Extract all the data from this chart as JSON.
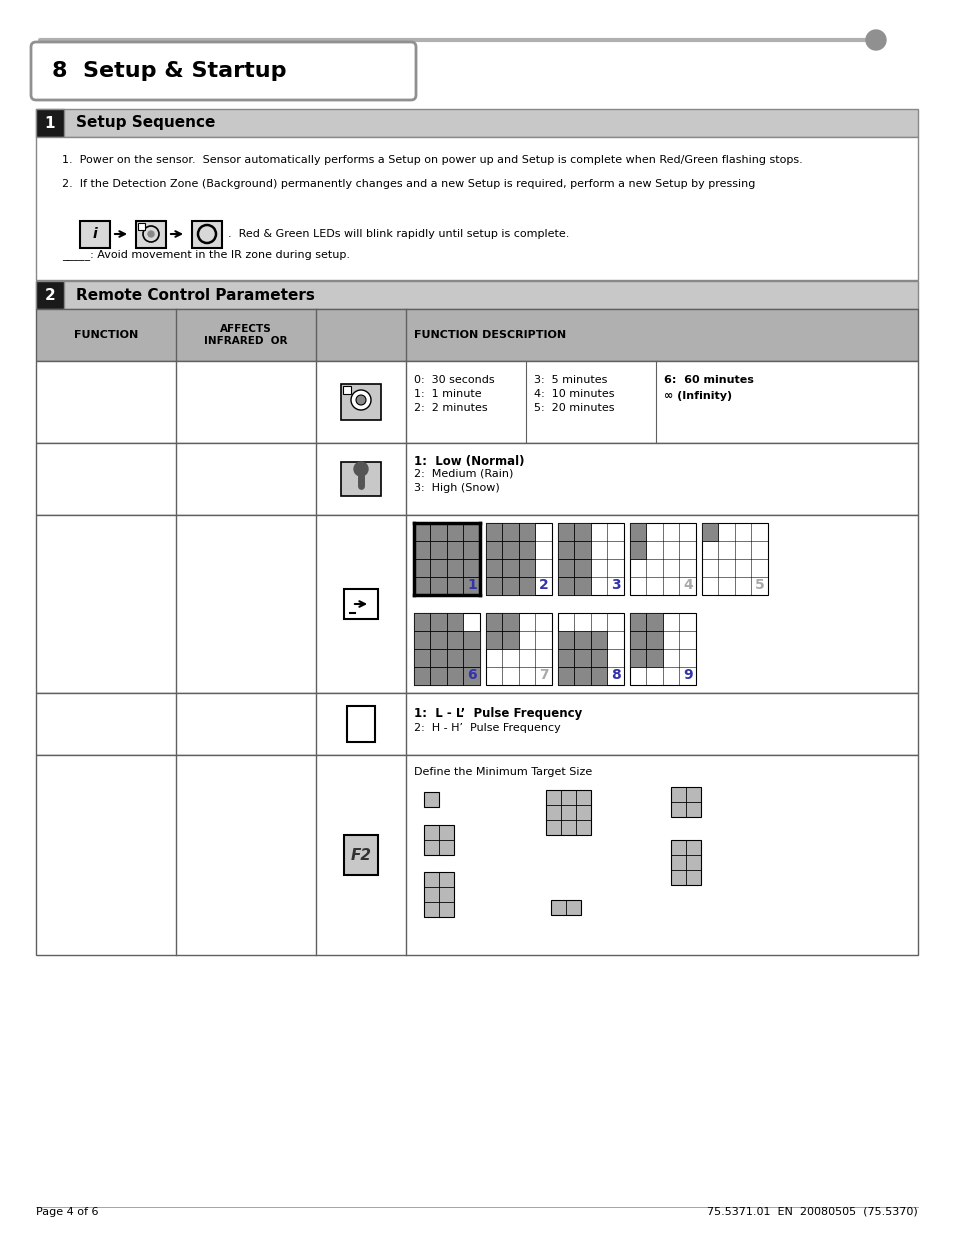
{
  "title": "8  Setup & Startup",
  "section1_title": "Setup Sequence",
  "section2_title": "Remote Control Parameters",
  "setup_text1": "1.  Power on the sensor.  Sensor automatically performs a Setup on power up and Setup is complete when Red/Green flashing stops.",
  "setup_text2": "2.  If the Detection Zone (Background) permanently changes and a new Setup is required, perform a new Setup by pressing",
  "setup_text3": ".  Red & Green LEDs will blink rapidly until setup is complete.",
  "setup_text4": "_____: Avoid movement in the IR zone during setup.",
  "row1_desc_col1": "0:  30 seconds\n1:  1 minute\n2:  2 minutes",
  "row1_desc_col2": "3:  5 minutes\n4:  10 minutes\n5:  20 minutes",
  "row1_desc_col3_line1": "6:  60 minutes",
  "row1_desc_col3_line2": "∞ (Infinity)",
  "row2_line1": "1:  Low (Normal)",
  "row2_line2": "2:  Medium (Rain)",
  "row2_line3": "3:  High (Snow)",
  "row4_line1": "1:  L - L’  Pulse Frequency",
  "row4_line2": "2:  H - H’  Pulse Frequency",
  "row5_title": "Define the Minimum Target Size",
  "bg_color": "#ffffff",
  "section_header_bg": "#c8c8c8",
  "table_header_bg": "#b0b0b0",
  "section_num_bg": "#1a1a1a",
  "page_footer_left": "Page 4 of 6",
  "page_footer_right": "75.5371.01  EN  20080505  (75.5370)"
}
